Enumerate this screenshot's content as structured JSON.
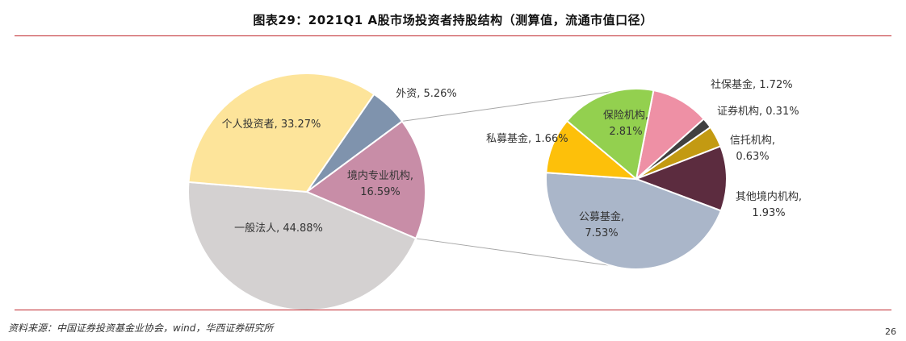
{
  "title": "图表29：2021Q1 A股市场投资者持股结构（测算值，流通市值口径）",
  "source": "资料来源：中国证券投资基金业协会，wind，华西证券研究所",
  "page_number": "26",
  "chart_data": [
    {
      "type": "pie",
      "slices": [
        {
          "label": "外资",
          "value": 5.26,
          "display": "5.26%",
          "color": "#7f93ad"
        },
        {
          "label": "境内专业机构",
          "value": 16.59,
          "display": "16.59%",
          "color": "#c88da7"
        },
        {
          "label": "一般法人",
          "value": 44.88,
          "display": "44.88%",
          "color": "#d4d1d1"
        },
        {
          "label": "个人投资者",
          "value": 33.27,
          "display": "33.27%",
          "color": "#fde49a"
        }
      ]
    },
    {
      "type": "pie",
      "slices": [
        {
          "label": "社保基金",
          "value": 1.72,
          "display": "1.72%",
          "color": "#ee90a5"
        },
        {
          "label": "证券机构",
          "value": 0.31,
          "display": "0.31%",
          "color": "#404040"
        },
        {
          "label": "信托机构",
          "value": 0.63,
          "display": "0.63%",
          "color": "#c39a12"
        },
        {
          "label": "其他境内机构",
          "value": 1.93,
          "display": "1.93%",
          "color": "#5c2c3f"
        },
        {
          "label": "公募基金",
          "value": 7.53,
          "display": "7.53%",
          "color": "#aab6c9"
        },
        {
          "label": "私募基金",
          "value": 1.66,
          "display": "1.66%",
          "color": "#fdc00a"
        },
        {
          "label": "保险机构",
          "value": 2.81,
          "display": "2.81%",
          "color": "#93d04f"
        }
      ]
    }
  ]
}
